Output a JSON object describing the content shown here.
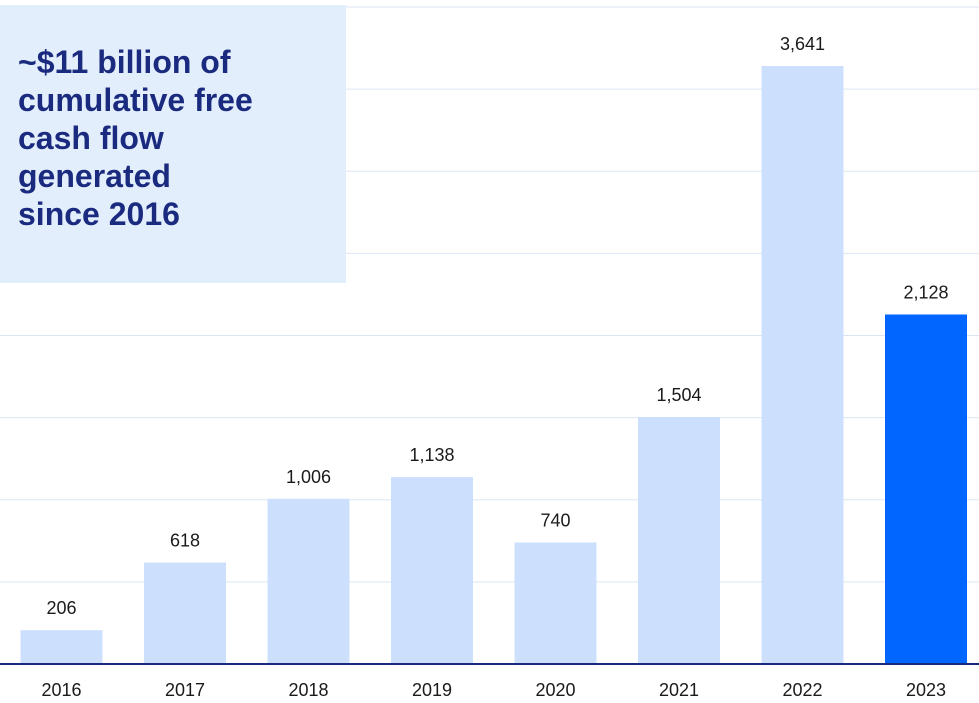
{
  "callout": {
    "text": "~$11 billion of\ncumulative free\ncash flow\ngenerated\nsince 2016"
  },
  "colors": {
    "bar": "#cce0fd",
    "highlight_bar": "#0066ff",
    "callout_bg": "#e3eefc",
    "callout_text": "#1a2a7e",
    "baseline": "#1a2a7e",
    "gridline": "#dbe6f4"
  },
  "chart_data": {
    "type": "bar",
    "categories": [
      "2016",
      "2017",
      "2018",
      "2019",
      "2020",
      "2021",
      "2022",
      "2023"
    ],
    "values": [
      206,
      618,
      1006,
      1138,
      740,
      1504,
      3641,
      2128
    ],
    "value_labels": [
      "206",
      "618",
      "1,006",
      "1,138",
      "740",
      "1,504",
      "3,641",
      "2,128"
    ],
    "highlight_category": "2023",
    "title": "",
    "xlabel": "",
    "ylabel": "",
    "ylim": [
      0,
      4000
    ],
    "grid": true,
    "legend": "none"
  }
}
